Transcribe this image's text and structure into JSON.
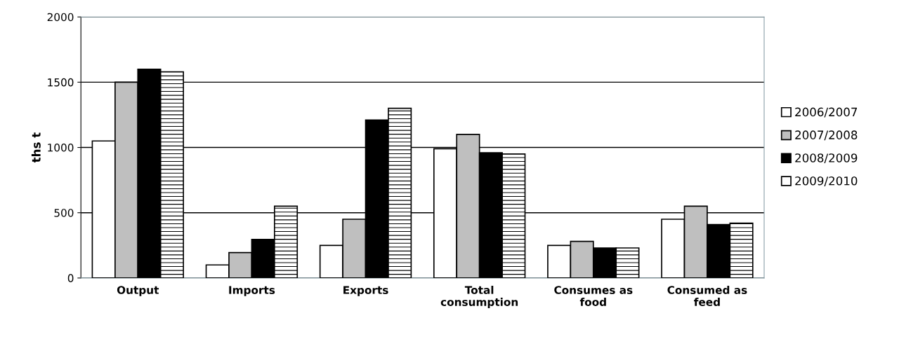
{
  "chart_data": {
    "type": "bar",
    "ylabel": "ths t",
    "categories": [
      "Output",
      "Imports",
      "Exports",
      "Total\nconsumption",
      "Consumes as\nfood",
      "Consumed as\nfeed"
    ],
    "series": [
      {
        "name": "2006/2007",
        "color": "#ffffff",
        "values": [
          1050,
          100,
          250,
          990,
          250,
          450
        ]
      },
      {
        "name": "2007/2008",
        "color": "#bfbfbf",
        "values": [
          1500,
          195,
          450,
          1100,
          280,
          550
        ]
      },
      {
        "name": "2008/2009",
        "color": "#000000",
        "values": [
          1600,
          295,
          1210,
          960,
          230,
          410
        ]
      },
      {
        "name": "2009/2010",
        "color": "#ffffff",
        "values": [
          1580,
          550,
          1300,
          950,
          230,
          420
        ]
      }
    ],
    "ylim": [
      0,
      2000
    ],
    "yticks": [
      0,
      500,
      1000,
      1500,
      2000
    ],
    "grid": "y",
    "legend": "right"
  }
}
